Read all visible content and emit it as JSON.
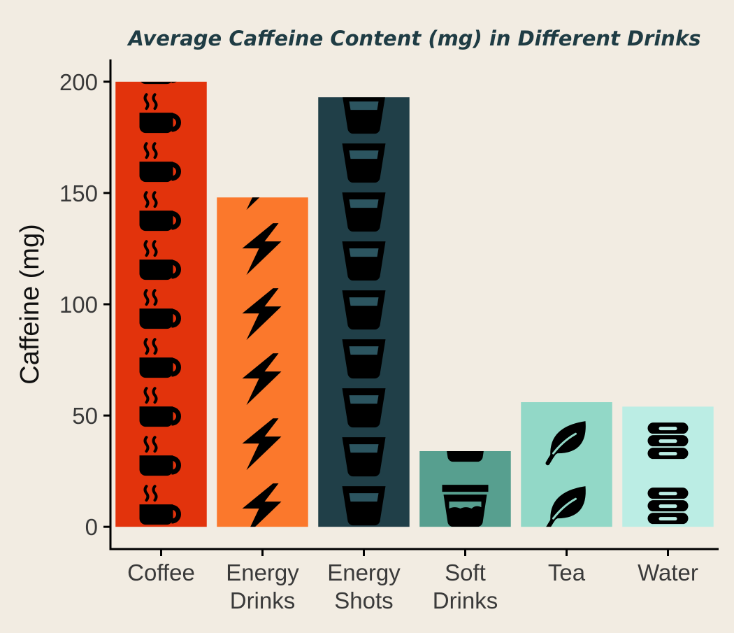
{
  "chart_data": {
    "type": "bar",
    "title": "Average Caffeine Content (mg) in Different Drinks",
    "xlabel": "",
    "ylabel": "Caffeine (mg)",
    "ylim": [
      -10,
      210
    ],
    "yticks": [
      0,
      50,
      100,
      150,
      200
    ],
    "categories": [
      [
        "Coffee"
      ],
      [
        "Energy",
        "Drinks"
      ],
      [
        "Energy",
        "Shots"
      ],
      [
        "Soft",
        "Drinks"
      ],
      [
        "Tea"
      ],
      [
        "Water"
      ]
    ],
    "values": [
      200,
      148,
      193,
      34,
      56,
      54
    ],
    "colors": [
      "#E2330C",
      "#FB782C",
      "#203F48",
      "#579F8F",
      "#92D8C7",
      "#BBEDE4"
    ],
    "icons": [
      "coffee-cup-icon",
      "lightning-bolt-icon",
      "shot-glass-icon",
      "soda-cup-icon",
      "leaf-icon",
      "water-bottle-icon"
    ],
    "grid": false,
    "legend": "none"
  }
}
